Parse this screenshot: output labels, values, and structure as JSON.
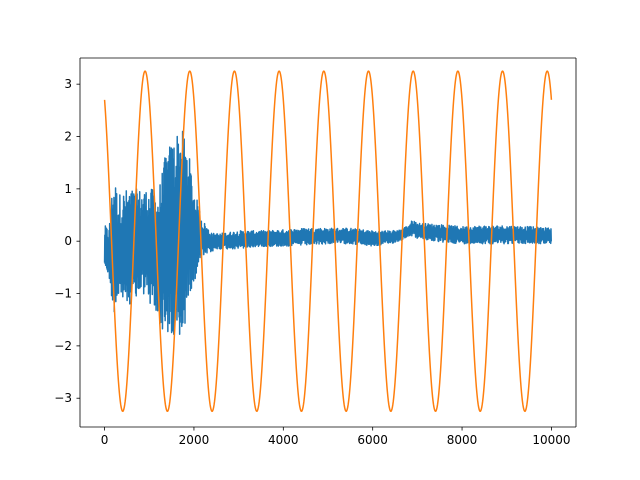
{
  "chart_data": {
    "type": "line",
    "title": "",
    "xlabel": "",
    "ylabel": "",
    "xlim": [
      -550,
      10550
    ],
    "ylim": [
      -3.55,
      3.5
    ],
    "xticks": [
      0,
      2000,
      4000,
      6000,
      8000,
      10000
    ],
    "xtick_labels": [
      "0",
      "2000",
      "4000",
      "6000",
      "8000",
      "10000"
    ],
    "yticks": [
      -3,
      -2,
      -1,
      0,
      1,
      2,
      3
    ],
    "ytick_labels": [
      "−3",
      "−2",
      "−1",
      "0",
      "1",
      "2",
      "3"
    ],
    "grid": false,
    "legend": "none",
    "series": [
      {
        "color": "#1f77b4",
        "x_start": 0,
        "x_end": 10000,
        "envelope_note_free": true,
        "envelope": {
          "x": [
            0,
            100,
            200,
            300,
            500,
            700,
            900,
            1100,
            1200,
            1300,
            1400,
            1500,
            1600,
            1700,
            1800,
            1900,
            2000,
            2100,
            2200,
            2400,
            2600,
            3000,
            3500,
            4000,
            4500,
            5000,
            5500,
            6000,
            6400,
            6600,
            6800,
            6900,
            7000,
            7500,
            8000,
            8500,
            9000,
            9500,
            10000
          ],
          "upper": [
            0.3,
            0.25,
            1.3,
            0.9,
            1.0,
            1.0,
            1.0,
            1.0,
            0.95,
            1.4,
            1.8,
            1.9,
            2.1,
            2.2,
            2.0,
            1.6,
            1.0,
            0.7,
            0.4,
            0.15,
            0.15,
            0.2,
            0.2,
            0.22,
            0.25,
            0.25,
            0.25,
            0.2,
            0.2,
            0.22,
            0.3,
            0.42,
            0.35,
            0.32,
            0.28,
            0.3,
            0.3,
            0.28,
            0.25
          ],
          "lower": [
            -0.5,
            -0.7,
            -1.4,
            -1.2,
            -1.2,
            -1.2,
            -1.0,
            -1.4,
            -1.6,
            -1.7,
            -1.8,
            -2.0,
            -2.0,
            -2.05,
            -1.6,
            -1.0,
            -0.8,
            -0.5,
            -0.3,
            -0.2,
            -0.15,
            -0.15,
            -0.1,
            -0.1,
            -0.08,
            -0.05,
            -0.05,
            -0.1,
            -0.05,
            0.0,
            0.1,
            0.1,
            0.05,
            -0.02,
            -0.05,
            -0.05,
            -0.05,
            -0.05,
            -0.05
          ]
        }
      },
      {
        "color": "#ff7f0e",
        "function": "sinusoid",
        "amplitude": 3.25,
        "period": 1000,
        "x_start": 0,
        "x_end": 10000,
        "y_at_x0": 2.7,
        "peak_x": [
          900,
          1900,
          2900,
          3900,
          4900,
          5900,
          6900,
          7900,
          8900,
          9900
        ],
        "trough_x": [
          400,
          1400,
          2400,
          3400,
          4400,
          5400,
          6400,
          7400,
          8400,
          9400
        ]
      }
    ]
  }
}
